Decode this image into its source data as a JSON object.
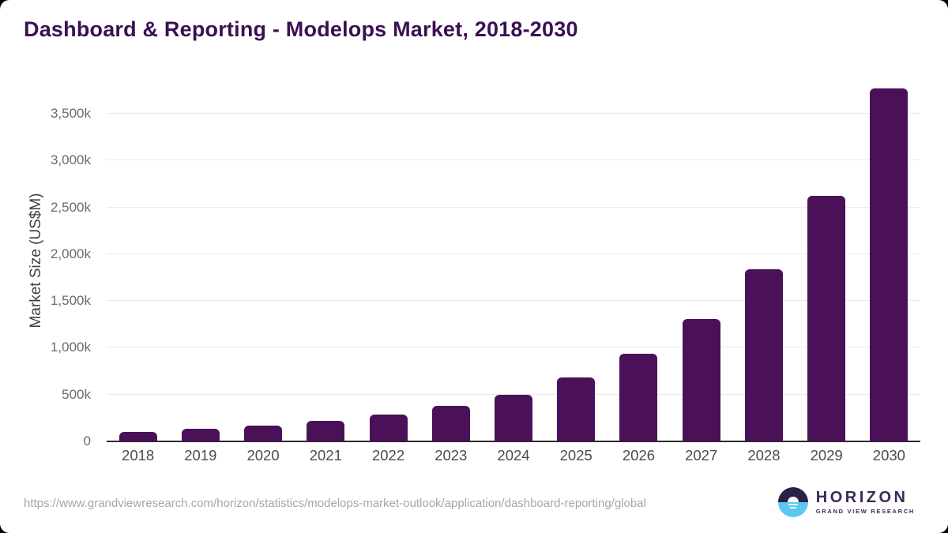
{
  "page": {
    "title": "Dashboard & Reporting - Modelops Market, 2018-2030"
  },
  "chart_data": {
    "type": "bar",
    "title": "Dashboard & Reporting - Modelops Market, 2018-2030",
    "ylabel": "Market Size (US$M)",
    "xlabel": "",
    "categories": [
      "2018",
      "2019",
      "2020",
      "2021",
      "2022",
      "2023",
      "2024",
      "2025",
      "2026",
      "2027",
      "2028",
      "2029",
      "2030"
    ],
    "values": [
      100,
      135,
      170,
      218,
      283,
      380,
      495,
      685,
      935,
      1305,
      1835,
      2625,
      3770
    ],
    "value_unit": "k",
    "ylim": [
      0,
      3870
    ],
    "yticks": [
      {
        "value": 0,
        "label": "0"
      },
      {
        "value": 500,
        "label": "500k"
      },
      {
        "value": 1000,
        "label": "1,000k"
      },
      {
        "value": 1500,
        "label": "1,500k"
      },
      {
        "value": 2000,
        "label": "2,000k"
      },
      {
        "value": 2500,
        "label": "2,500k"
      },
      {
        "value": 3000,
        "label": "3,000k"
      },
      {
        "value": 3500,
        "label": "3,500k"
      }
    ],
    "grid": true,
    "legend": false,
    "bar_color": "#4a1158"
  },
  "footer": {
    "source_url": "https://www.grandviewresearch.com/horizon/statistics/modelops-market-outlook/application/dashboard-reporting/global",
    "logo": {
      "name": "HORIZON",
      "subtitle": "GRAND VIEW RESEARCH"
    }
  },
  "colors": {
    "title": "#3b1053",
    "bar": "#4a1158",
    "gridline": "#e9e9e9",
    "axis_line": "#2b2b2b",
    "logo_dark": "#2b2147",
    "logo_blue": "#5bc7f2",
    "logo_text": "#3d2957",
    "url_text": "#a6a6a6",
    "card_background": "#ffffff"
  }
}
